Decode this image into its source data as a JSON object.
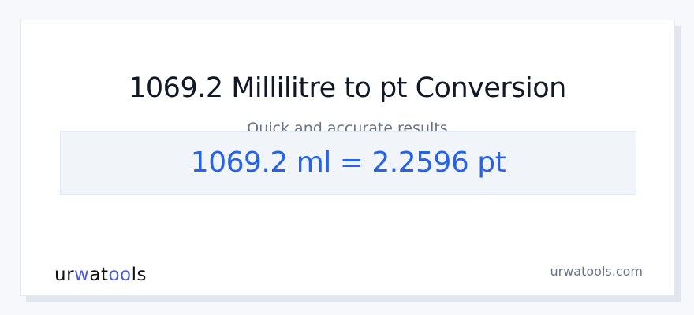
{
  "card": {
    "title": "1069.2 Millilitre to pt Conversion",
    "subtitle": "Quick and accurate results",
    "result": "1069.2 ml = 2.2596 pt"
  },
  "footer": {
    "logo_text": "urwatools",
    "site": "urwatools.com"
  },
  "colors": {
    "accent": "#2563eb",
    "logo_accent": "#4f5bd5"
  }
}
